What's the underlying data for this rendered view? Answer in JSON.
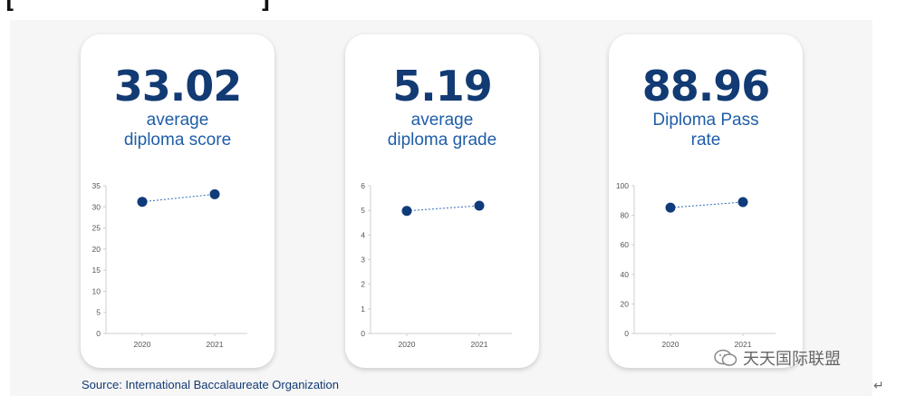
{
  "source": "Source: International Baccalaureate Organization",
  "watermark": "天天国际联盟",
  "colors": {
    "accent": "#123a73",
    "label": "#1f5ea8",
    "dot": "#0f3b7a"
  },
  "cards": [
    {
      "value": "33.02",
      "label_lines": [
        "average",
        "diploma score"
      ],
      "chart_data": {
        "type": "line",
        "x": [
          "2020",
          "2021"
        ],
        "values": [
          31.2,
          33.0
        ],
        "yticks": [
          0,
          5,
          10,
          15,
          20,
          25,
          30,
          35
        ],
        "ylim": [
          0,
          35
        ]
      }
    },
    {
      "value": "5.19",
      "label_lines": [
        "average",
        "diploma grade"
      ],
      "chart_data": {
        "type": "line",
        "x": [
          "2020",
          "2021"
        ],
        "values": [
          4.98,
          5.19
        ],
        "yticks": [
          0,
          1,
          2,
          3,
          4,
          5,
          6
        ],
        "ylim": [
          0,
          6
        ]
      }
    },
    {
      "value": "88.96",
      "label_lines": [
        "Diploma Pass",
        "rate"
      ],
      "chart_data": {
        "type": "line",
        "x": [
          "2020",
          "2021"
        ],
        "values": [
          85.2,
          88.96
        ],
        "yticks": [
          0,
          20,
          40,
          60,
          80,
          100
        ],
        "ylim": [
          0,
          100
        ]
      }
    }
  ]
}
